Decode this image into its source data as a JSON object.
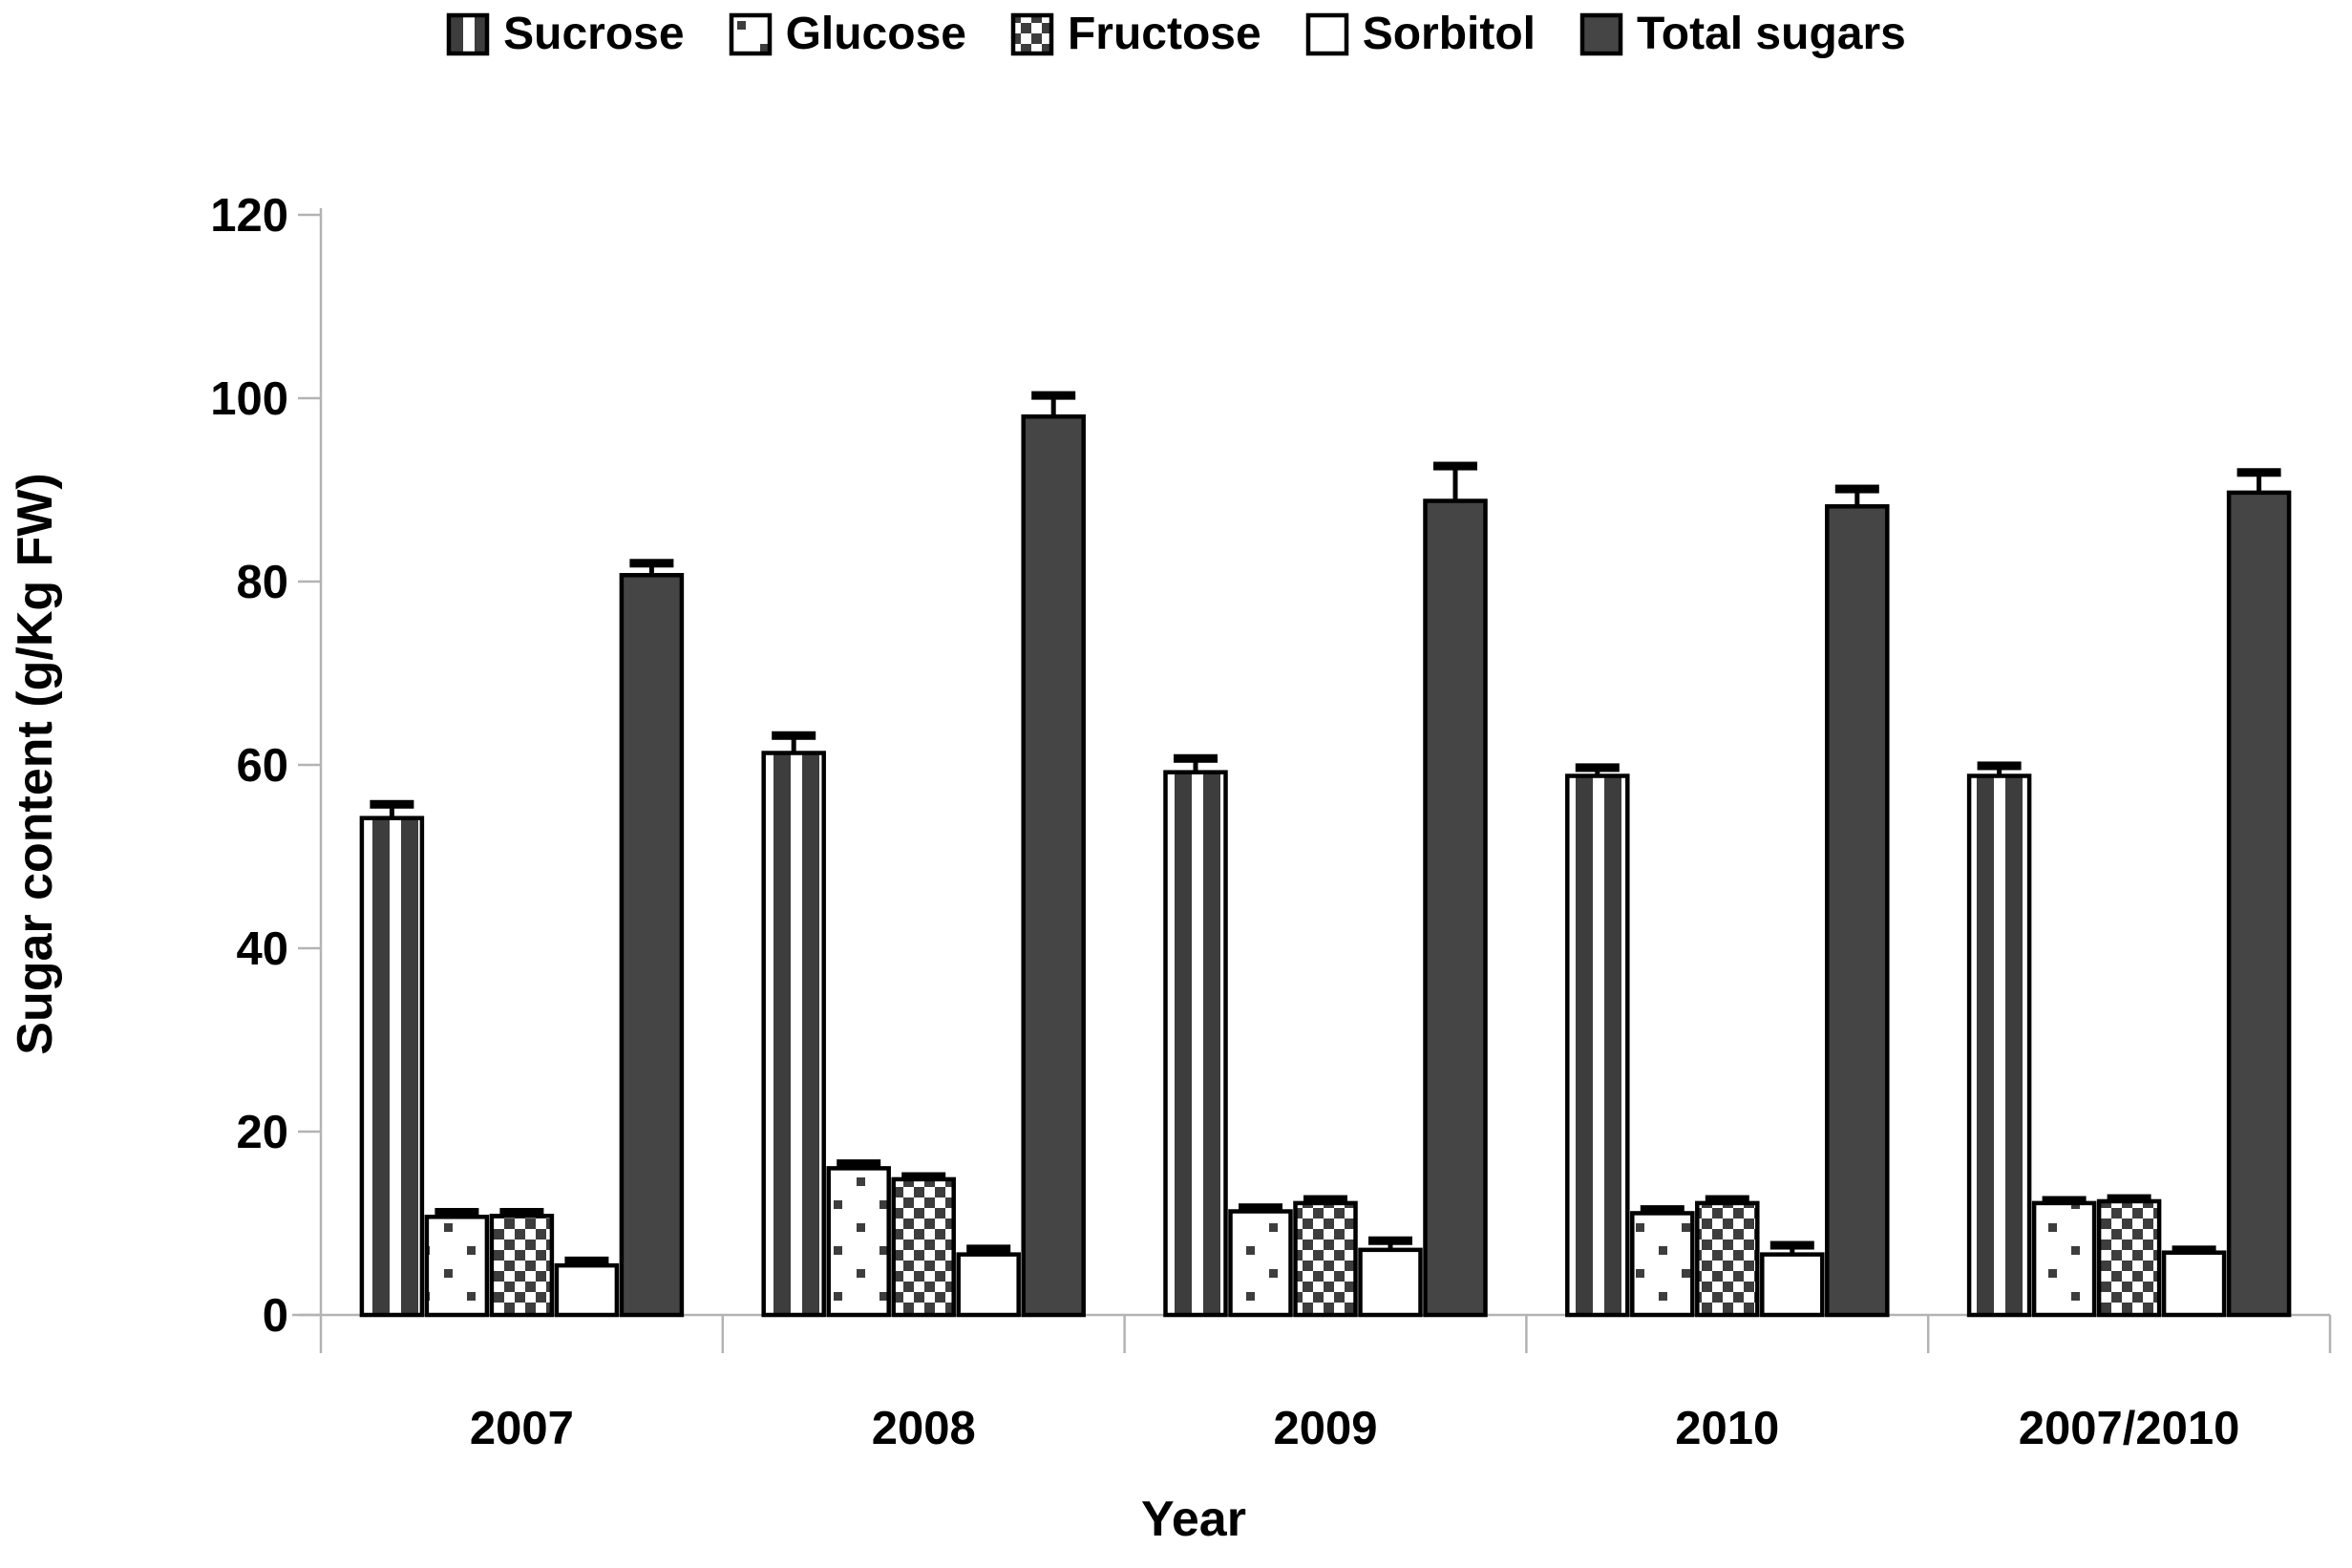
{
  "chart_data": {
    "type": "bar",
    "title": "",
    "ylabel": "Sugar content (g/Kg FW)",
    "xlabel": "Year",
    "ylim": [
      0,
      120
    ],
    "ytick_step": 20,
    "grid": false,
    "legend_position": "top-center",
    "error_bars": "upper",
    "categories": [
      "2007",
      "2008",
      "2009",
      "2010",
      "2007/2010"
    ],
    "series": [
      {
        "name": "Sucrose",
        "pattern": "vertical-stripes",
        "values": [
          54.2,
          61.3,
          59.2,
          58.8,
          58.8
        ],
        "errors": [
          1.5,
          1.9,
          1.5,
          0.9,
          1.1
        ]
      },
      {
        "name": "Glucose",
        "pattern": "dots",
        "values": [
          10.7,
          16.0,
          11.3,
          11.1,
          12.2
        ],
        "errors": [
          0.5,
          0.5,
          0.4,
          0.4,
          0.3
        ]
      },
      {
        "name": "Fructose",
        "pattern": "checkerboard",
        "values": [
          10.8,
          14.8,
          12.2,
          12.2,
          12.4
        ],
        "errors": [
          0.4,
          0.3,
          0.4,
          0.4,
          0.3
        ]
      },
      {
        "name": "Sorbitol",
        "pattern": "plain-white",
        "values": [
          5.4,
          6.6,
          7.1,
          6.6,
          6.8
        ],
        "errors": [
          0.5,
          0.6,
          1.0,
          1.0,
          0.3
        ]
      },
      {
        "name": "Total sugars",
        "pattern": "solid-dark",
        "values": [
          80.7,
          98.0,
          88.8,
          88.2,
          89.7
        ],
        "errors": [
          1.3,
          2.3,
          3.8,
          1.9,
          2.2
        ]
      }
    ],
    "colors": {
      "bar_dark": "#454545",
      "pattern_dark": "#3d3d3d",
      "axis_gray": "#b3b3b3",
      "text": "#000000",
      "background": "#ffffff"
    },
    "ytick_labels": [
      "0",
      "20",
      "40",
      "60",
      "80",
      "100",
      "120"
    ]
  }
}
